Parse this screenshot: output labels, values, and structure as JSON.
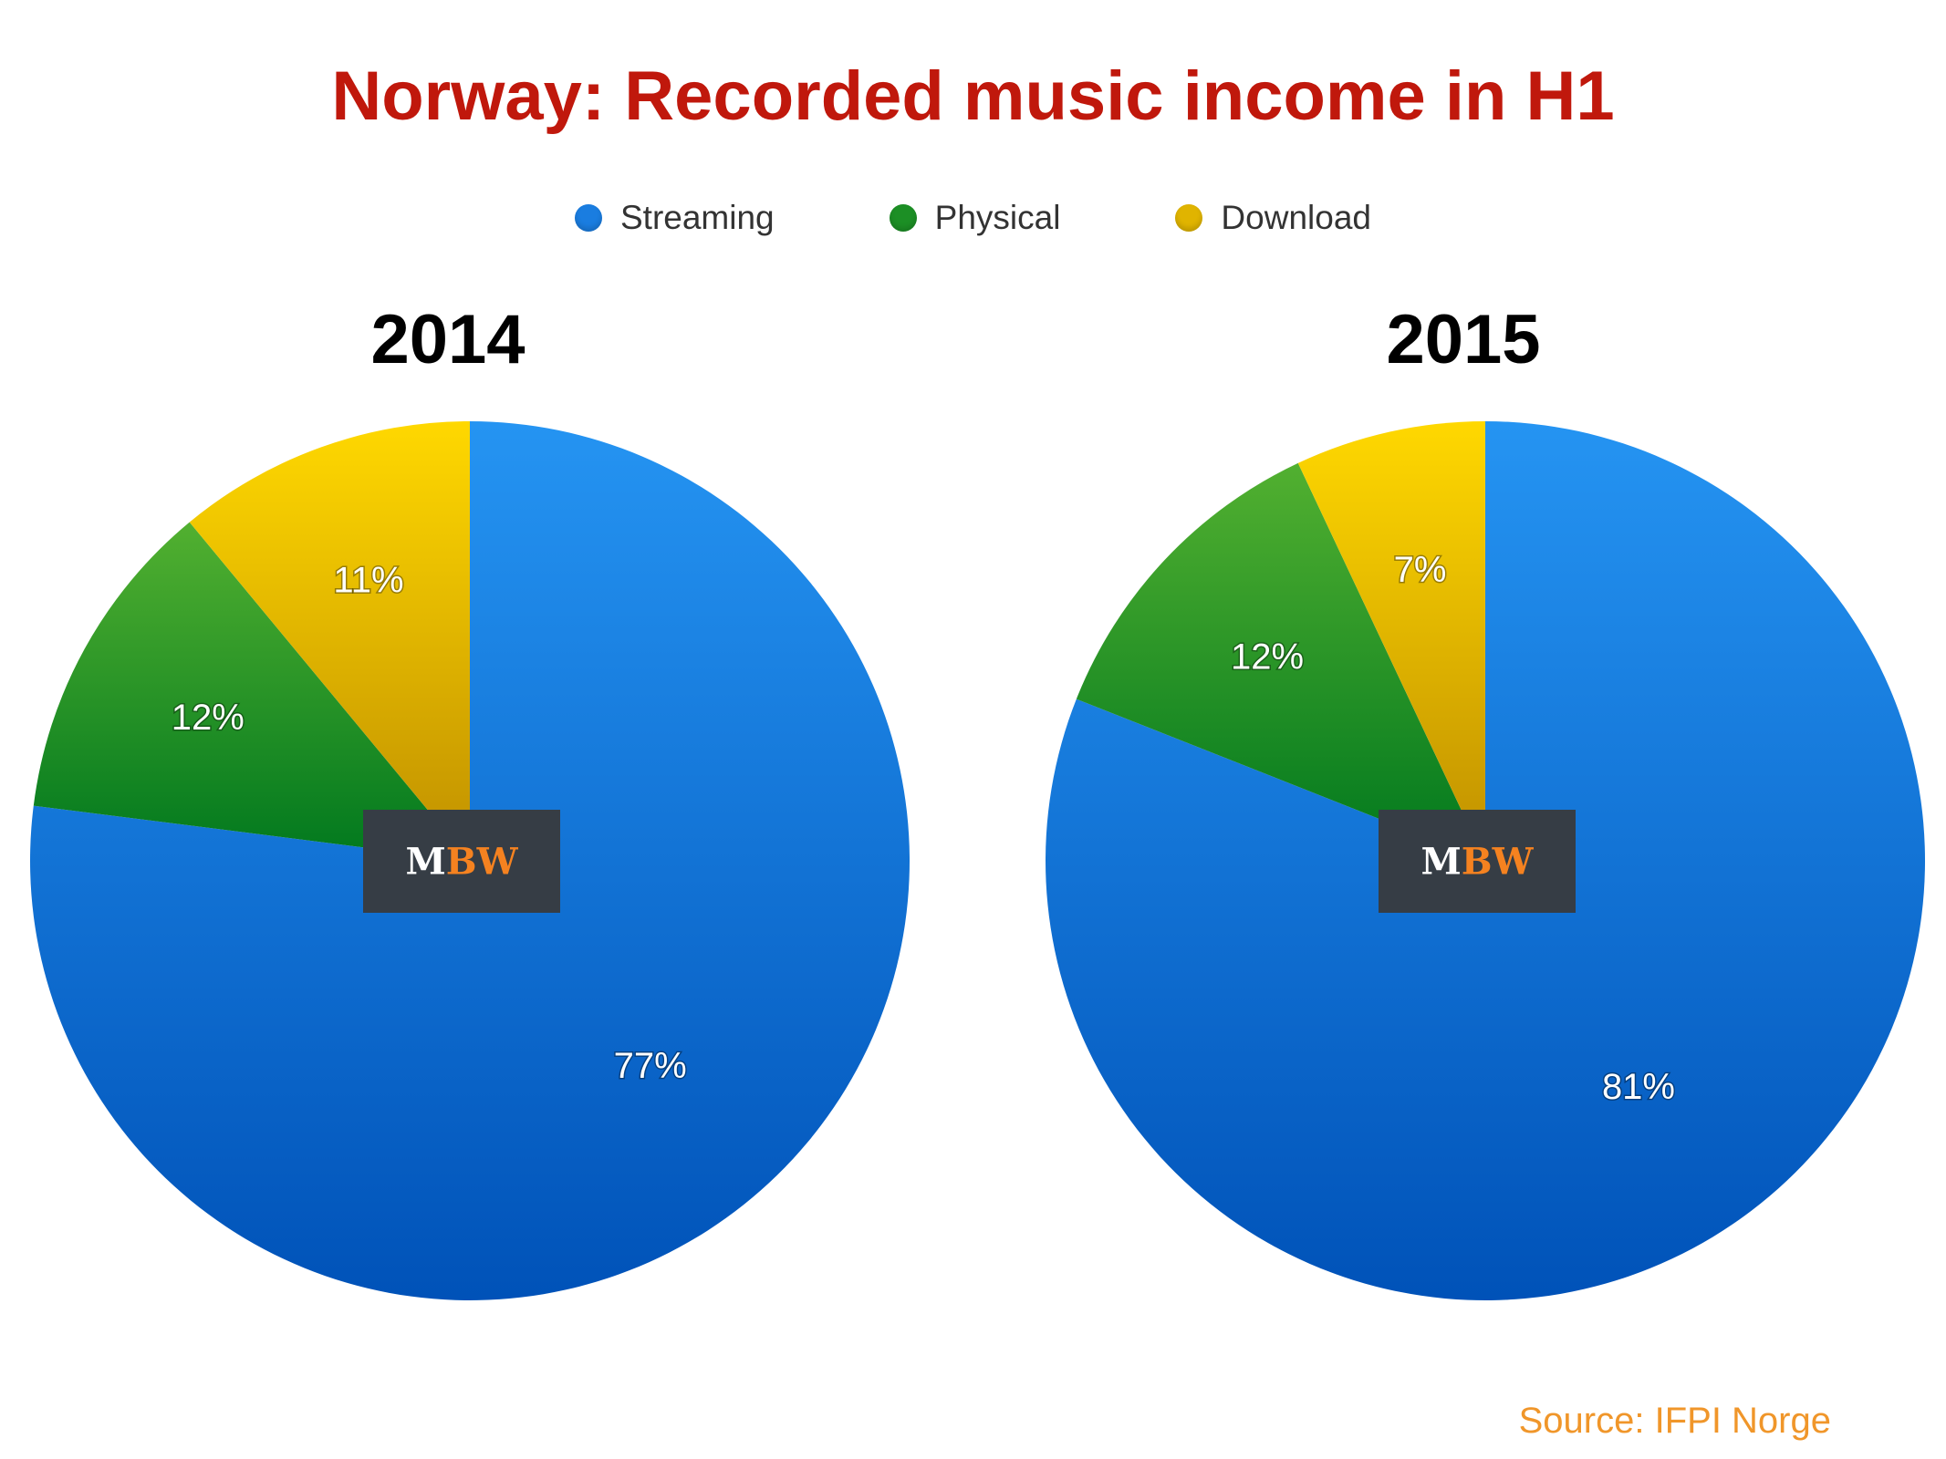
{
  "title": "Norway: Recorded music income in H1",
  "source": "Source: IFPI Norge",
  "logo": {
    "text_m": "M",
    "text_bw": "BW",
    "bg": "#363d45",
    "m_color": "#ffffff",
    "bw_color": "#f58220"
  },
  "legend": [
    {
      "name": "Streaming",
      "color": "#1a7de0"
    },
    {
      "name": "Physical",
      "color": "#1c8f25"
    },
    {
      "name": "Download",
      "color": "#e0b400"
    }
  ],
  "chart_data": [
    {
      "type": "pie",
      "title": "2014",
      "slices": [
        {
          "name": "Streaming",
          "value": 77,
          "label": "77%"
        },
        {
          "name": "Physical",
          "value": 12,
          "label": "12%"
        },
        {
          "name": "Download",
          "value": 11,
          "label": "11%"
        }
      ]
    },
    {
      "type": "pie",
      "title": "2015",
      "slices": [
        {
          "name": "Streaming",
          "value": 81,
          "label": "81%"
        },
        {
          "name": "Physical",
          "value": 12,
          "label": "12%"
        },
        {
          "name": "Download",
          "value": 7,
          "label": "7%"
        }
      ]
    }
  ]
}
